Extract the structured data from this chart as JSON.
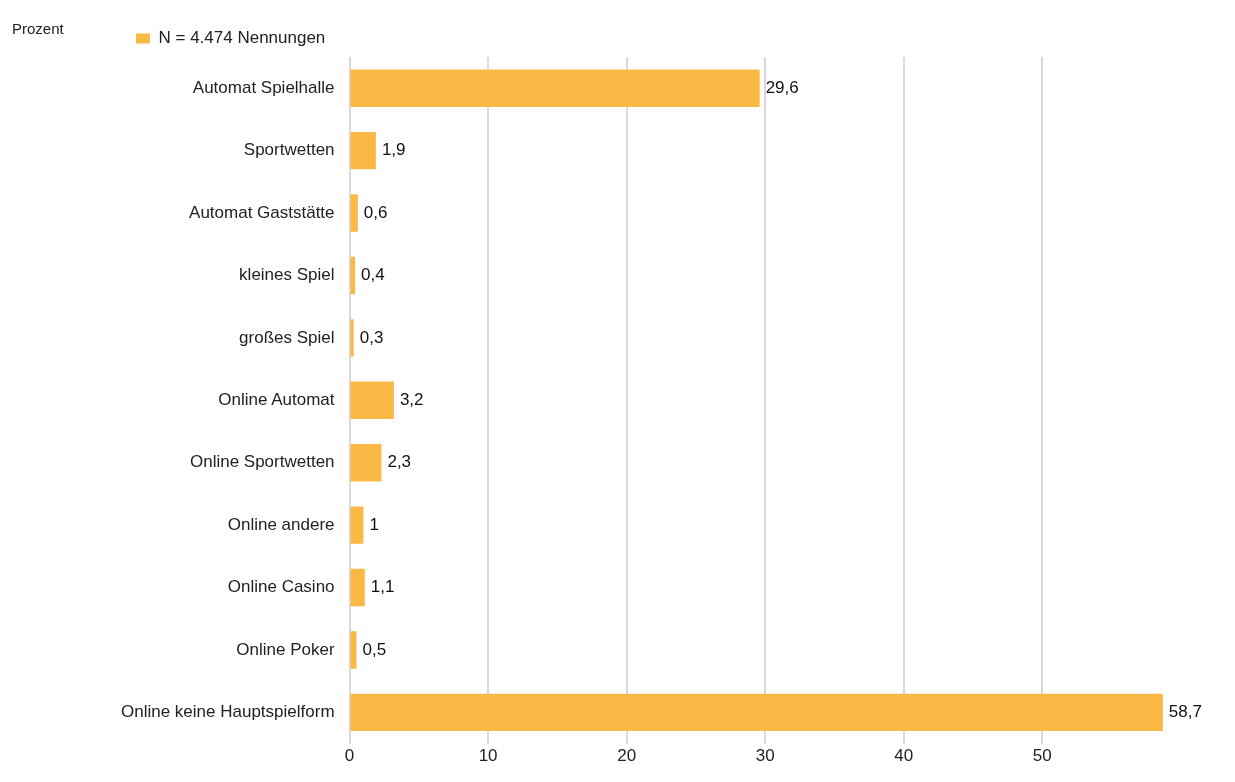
{
  "chart_data": {
    "type": "bar",
    "orientation": "horizontal",
    "xlabel": "Prozent",
    "categories": [
      "Automat Spielhalle",
      "Sportwetten",
      "Automat Gaststätte",
      "kleines Spiel",
      "großes Spiel",
      "Online Automat",
      "Online Sportwetten",
      "Online andere",
      "Online Casino",
      "Online Poker",
      "Online keine Hauptspielform"
    ],
    "series": [
      {
        "name": "N = 4.474 Nennungen",
        "color": "#f9b944",
        "values": [
          29.6,
          1.9,
          0.6,
          0.4,
          0.3,
          3.2,
          2.3,
          1,
          1.1,
          0.5,
          58.7
        ],
        "value_labels": [
          "29,6",
          "1,9",
          "0,6",
          "0,4",
          "0,3",
          "3,2",
          "2,3",
          "1",
          "1,1",
          "0,5",
          "58,7"
        ]
      }
    ],
    "xlim": [
      0,
      59
    ],
    "xticks": [
      0,
      10,
      20,
      30,
      40,
      50
    ],
    "grid": "x",
    "legend": "top left",
    "data_labels": true
  }
}
